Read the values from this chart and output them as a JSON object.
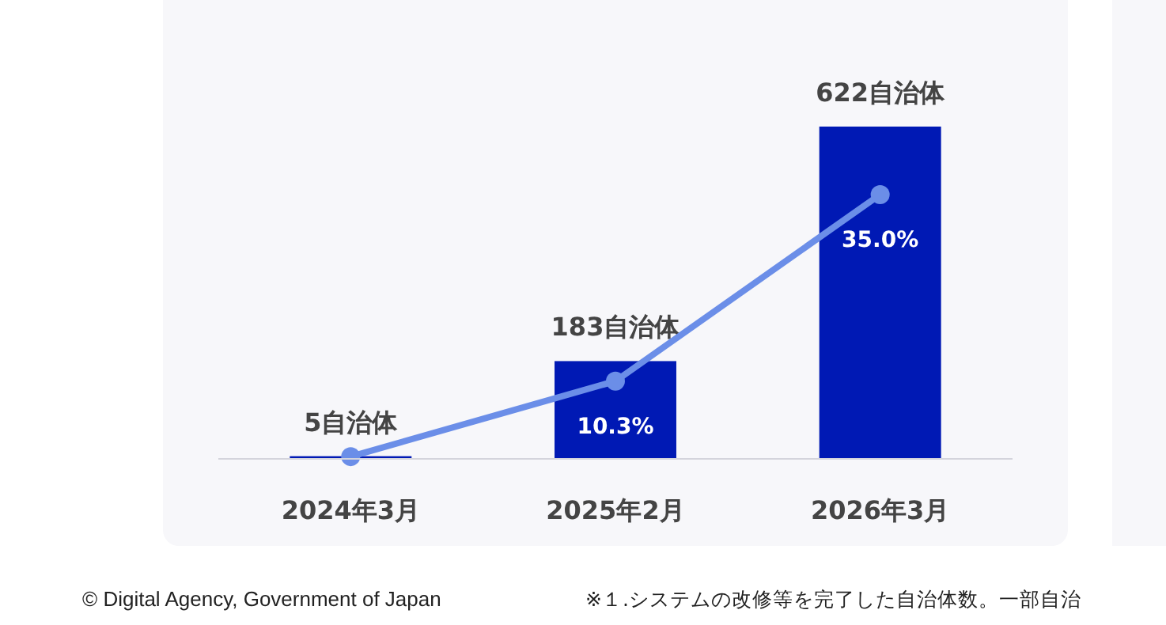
{
  "chart_data": {
    "type": "bar",
    "categories": [
      "2024年3月",
      "2025年2月",
      "2026年3月"
    ],
    "series": [
      {
        "color": "#0019b4",
        "values": [
          5,
          183,
          622
        ],
        "value_labels": [
          "5自治体",
          "183自治体",
          "622自治体"
        ]
      },
      {
        "type": "line",
        "axis": "y2",
        "color": "#6b8ee8",
        "values": [
          0.3,
          10.3,
          35.0
        ],
        "value_labels": [
          null,
          "10.3%",
          "35.0%"
        ]
      }
    ],
    "ylim": [
      0,
      622
    ],
    "y2lim": [
      0,
      44
    ],
    "tick_labels": "x",
    "marker": "circle",
    "line_style": "solid",
    "annotations": [
      "© Digital Agency, Government of Japan",
      "※１.システムの改修等を完了した自治体数。一部自治"
    ]
  }
}
